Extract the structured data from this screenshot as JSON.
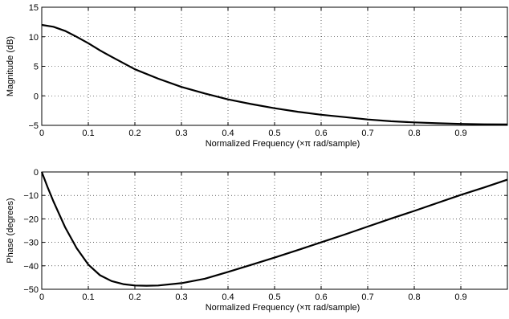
{
  "chart_data": [
    {
      "type": "line",
      "title": "",
      "xlabel": "Normalized Frequency  (×π rad/sample)",
      "ylabel": "Magnitude (dB)",
      "xlim": [
        0,
        1
      ],
      "ylim": [
        -5,
        15
      ],
      "xticks": [
        0,
        0.1,
        0.2,
        0.3,
        0.4,
        0.5,
        0.6,
        0.7,
        0.8,
        0.9
      ],
      "xtick_labels": [
        "0",
        "0.1",
        "0.2",
        "0.3",
        "0.4",
        "0.5",
        "0.6",
        "0.7",
        "0.8",
        "0.9"
      ],
      "yticks": [
        -5,
        0,
        5,
        10,
        15
      ],
      "ytick_labels": [
        "−5",
        "0",
        "5",
        "10",
        "15"
      ],
      "grid": true,
      "series": [
        {
          "x": [
            0,
            0.025,
            0.05,
            0.075,
            0.1,
            0.125,
            0.15,
            0.2,
            0.25,
            0.3,
            0.35,
            0.4,
            0.45,
            0.5,
            0.55,
            0.6,
            0.65,
            0.7,
            0.75,
            0.8,
            0.85,
            0.9,
            0.95,
            1.0
          ],
          "y": [
            12.0,
            11.7,
            11.0,
            10.0,
            8.9,
            7.7,
            6.6,
            4.5,
            2.9,
            1.5,
            0.4,
            -0.6,
            -1.4,
            -2.1,
            -2.7,
            -3.2,
            -3.6,
            -4.0,
            -4.3,
            -4.5,
            -4.65,
            -4.75,
            -4.82,
            -4.85
          ]
        }
      ],
      "line_color": "#000000"
    },
    {
      "type": "line",
      "title": "",
      "xlabel": "Normalized Frequency  (×π rad/sample)",
      "ylabel": "Phase (degrees)",
      "xlim": [
        0,
        1
      ],
      "ylim": [
        -50,
        0
      ],
      "xticks": [
        0,
        0.1,
        0.2,
        0.3,
        0.4,
        0.5,
        0.6,
        0.7,
        0.8,
        0.9
      ],
      "xtick_labels": [
        "0",
        "0.1",
        "0.2",
        "0.3",
        "0.4",
        "0.5",
        "0.6",
        "0.7",
        "0.8",
        "0.9"
      ],
      "yticks": [
        -50,
        -40,
        -30,
        -20,
        -10,
        0
      ],
      "ytick_labels": [
        "−50",
        "−40",
        "−30",
        "−20",
        "−10",
        "0"
      ],
      "grid": true,
      "series": [
        {
          "x": [
            0,
            0.0125,
            0.025,
            0.05,
            0.075,
            0.1,
            0.125,
            0.15,
            0.175,
            0.2,
            0.225,
            0.25,
            0.3,
            0.35,
            0.4,
            0.45,
            0.5,
            0.55,
            0.6,
            0.65,
            0.7,
            0.75,
            0.8,
            0.85,
            0.9,
            0.95,
            1.0
          ],
          "y": [
            0,
            -6.5,
            -12.5,
            -23.5,
            -32.5,
            -39.5,
            -44.0,
            -46.5,
            -47.8,
            -48.4,
            -48.5,
            -48.4,
            -47.4,
            -45.5,
            -42.6,
            -39.6,
            -36.5,
            -33.3,
            -30.0,
            -26.7,
            -23.3,
            -19.9,
            -16.6,
            -13.2,
            -9.8,
            -6.6,
            -3.3
          ]
        }
      ],
      "line_color": "#000000"
    }
  ]
}
